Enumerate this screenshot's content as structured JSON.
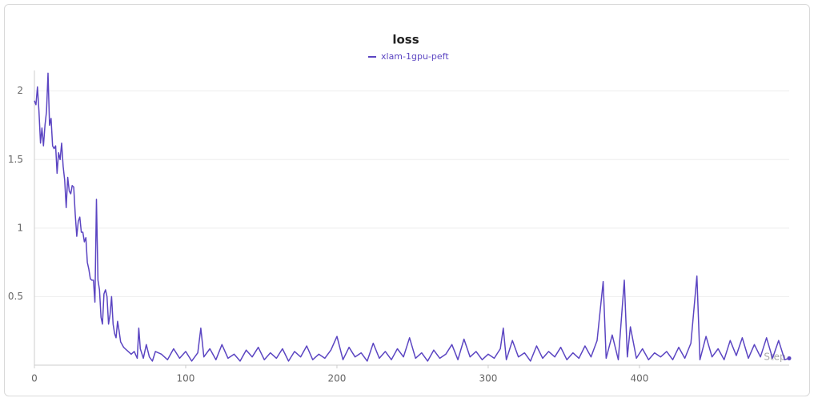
{
  "chart_data": {
    "type": "line",
    "title": "loss",
    "x_label": "Step",
    "xlim": [
      0,
      499
    ],
    "ylim": [
      0,
      2.15
    ],
    "xticks": [
      0,
      100,
      200,
      300,
      400
    ],
    "yticks": [
      0.5,
      1,
      1.5,
      2
    ],
    "grid": true,
    "x": [
      0,
      1,
      2,
      3,
      4,
      5,
      6,
      7,
      8,
      9,
      10,
      11,
      12,
      13,
      14,
      15,
      16,
      17,
      18,
      19,
      20,
      21,
      22,
      23,
      24,
      25,
      26,
      27,
      28,
      29,
      30,
      31,
      32,
      33,
      34,
      35,
      36,
      37,
      38,
      39,
      40,
      41,
      42,
      43,
      44,
      45,
      46,
      47,
      48,
      49,
      50,
      51,
      52,
      53,
      54,
      55,
      56,
      57,
      58,
      59,
      60,
      62,
      64,
      66,
      68,
      69,
      70,
      72,
      74,
      76,
      78,
      80,
      84,
      88,
      92,
      96,
      100,
      104,
      108,
      110,
      112,
      116,
      120,
      124,
      128,
      132,
      136,
      140,
      144,
      148,
      152,
      156,
      160,
      164,
      168,
      172,
      176,
      180,
      184,
      188,
      192,
      196,
      200,
      204,
      208,
      212,
      216,
      220,
      224,
      228,
      232,
      236,
      240,
      244,
      248,
      252,
      256,
      260,
      264,
      268,
      272,
      276,
      280,
      284,
      288,
      292,
      296,
      300,
      304,
      308,
      310,
      312,
      316,
      320,
      324,
      328,
      332,
      336,
      340,
      344,
      348,
      352,
      356,
      360,
      364,
      368,
      372,
      376,
      378,
      382,
      386,
      390,
      392,
      394,
      398,
      402,
      406,
      410,
      414,
      418,
      422,
      426,
      430,
      434,
      438,
      440,
      444,
      448,
      452,
      456,
      460,
      464,
      468,
      472,
      476,
      480,
      484,
      488,
      492,
      496,
      499
    ],
    "series": [
      {
        "name": "xlam-1gpu-peft",
        "color": "#5b45c2",
        "values": [
          1.93,
          1.9,
          2.03,
          1.85,
          1.62,
          1.73,
          1.6,
          1.75,
          1.85,
          2.13,
          1.75,
          1.8,
          1.6,
          1.58,
          1.6,
          1.4,
          1.55,
          1.5,
          1.62,
          1.45,
          1.35,
          1.15,
          1.37,
          1.27,
          1.25,
          1.31,
          1.3,
          1.1,
          0.94,
          1.05,
          1.08,
          0.97,
          0.97,
          0.9,
          0.93,
          0.75,
          0.7,
          0.63,
          0.62,
          0.62,
          0.46,
          1.21,
          0.62,
          0.55,
          0.35,
          0.3,
          0.52,
          0.55,
          0.5,
          0.3,
          0.37,
          0.5,
          0.3,
          0.23,
          0.2,
          0.32,
          0.25,
          0.17,
          0.15,
          0.13,
          0.12,
          0.1,
          0.08,
          0.1,
          0.05,
          0.27,
          0.12,
          0.05,
          0.15,
          0.06,
          0.03,
          0.1,
          0.08,
          0.04,
          0.12,
          0.05,
          0.1,
          0.03,
          0.09,
          0.27,
          0.06,
          0.12,
          0.04,
          0.15,
          0.05,
          0.08,
          0.03,
          0.11,
          0.06,
          0.13,
          0.04,
          0.09,
          0.05,
          0.12,
          0.03,
          0.1,
          0.06,
          0.14,
          0.04,
          0.08,
          0.05,
          0.11,
          0.21,
          0.04,
          0.13,
          0.06,
          0.09,
          0.03,
          0.16,
          0.05,
          0.1,
          0.04,
          0.12,
          0.06,
          0.2,
          0.05,
          0.09,
          0.03,
          0.11,
          0.05,
          0.08,
          0.15,
          0.04,
          0.19,
          0.06,
          0.1,
          0.04,
          0.08,
          0.05,
          0.12,
          0.27,
          0.04,
          0.18,
          0.06,
          0.09,
          0.03,
          0.14,
          0.05,
          0.1,
          0.06,
          0.13,
          0.04,
          0.09,
          0.05,
          0.14,
          0.06,
          0.18,
          0.61,
          0.05,
          0.22,
          0.04,
          0.62,
          0.06,
          0.28,
          0.05,
          0.12,
          0.04,
          0.09,
          0.06,
          0.1,
          0.04,
          0.13,
          0.05,
          0.16,
          0.65,
          0.04,
          0.21,
          0.06,
          0.12,
          0.04,
          0.18,
          0.07,
          0.2,
          0.05,
          0.15,
          0.06,
          0.2,
          0.05,
          0.18,
          0.04,
          0.05
        ]
      }
    ]
  }
}
